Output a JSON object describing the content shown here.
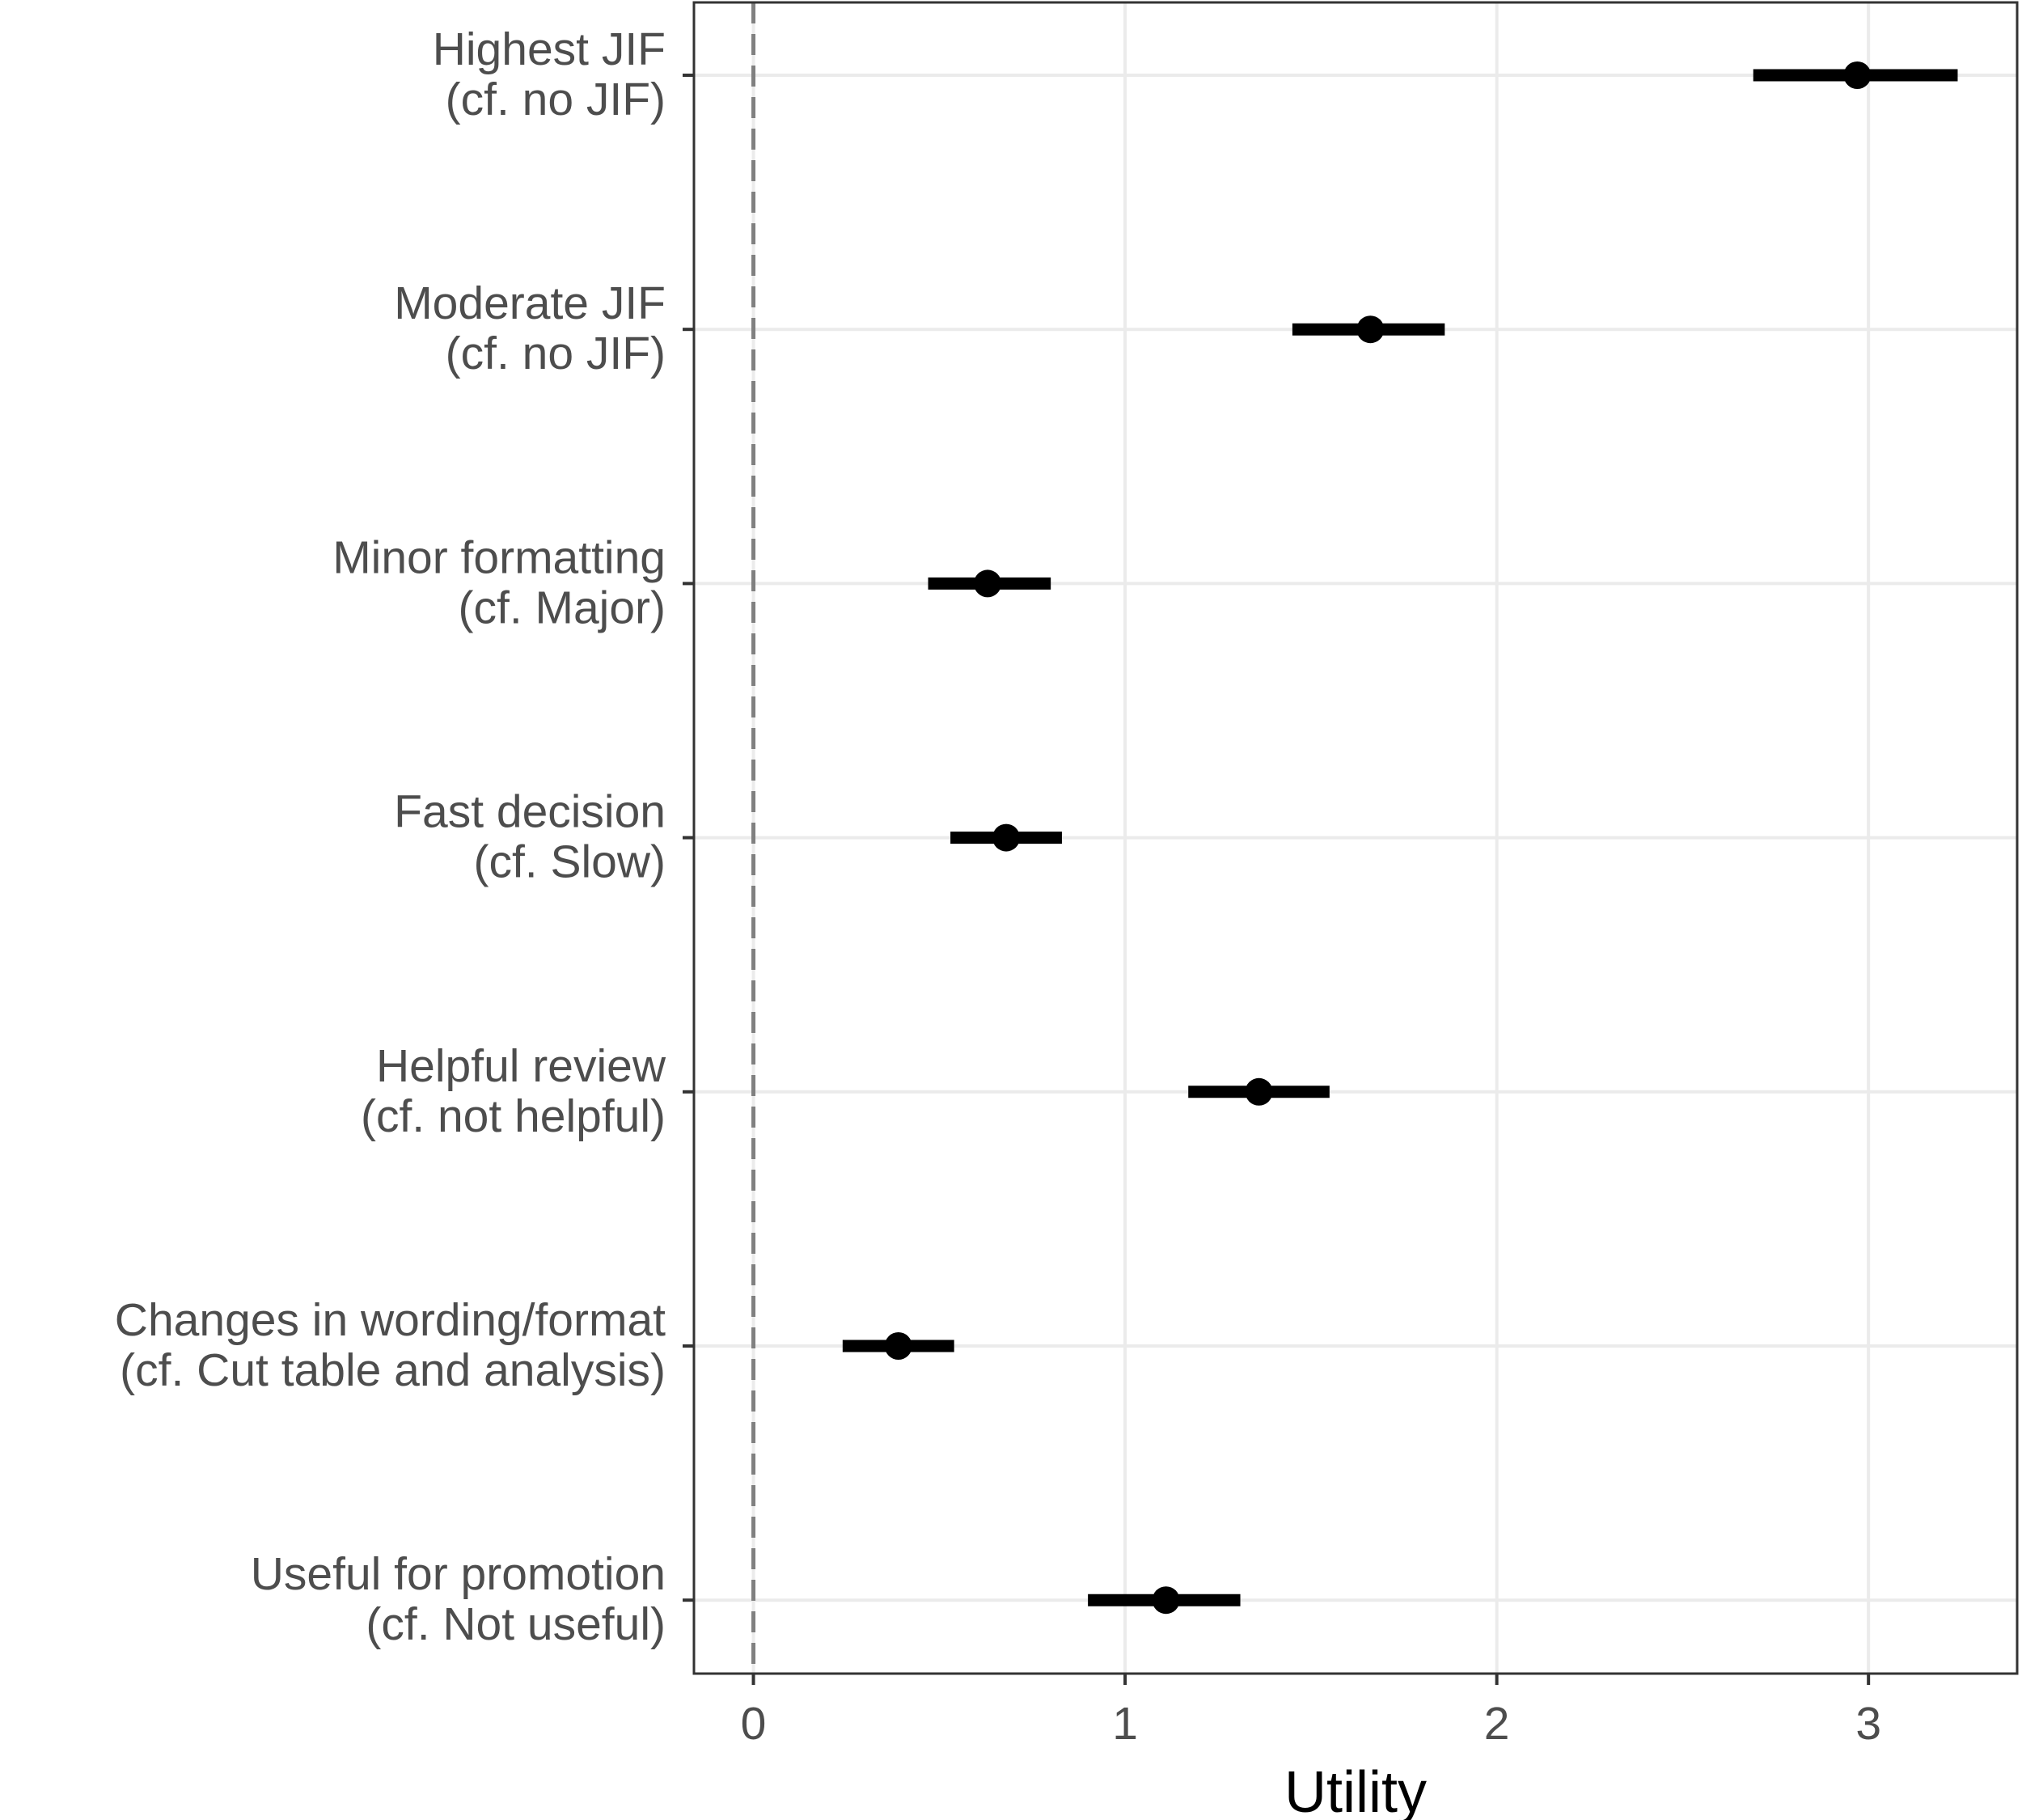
{
  "chart_data": {
    "type": "scatter",
    "subtype": "forest-plot",
    "title": "",
    "xlabel": "Utility",
    "ylabel": "",
    "xlim": [
      -0.16,
      3.4
    ],
    "x_ticks": [
      0,
      1,
      2,
      3
    ],
    "x_tick_labels": [
      "0",
      "1",
      "2",
      "3"
    ],
    "reference_line": {
      "x": 0,
      "style": "dashed",
      "color": "#808080"
    },
    "grid": true,
    "legend": "none",
    "point_color": "#000000",
    "categories": [
      {
        "line1": "Highest JIF",
        "line2": "(cf. no JIF)",
        "estimate": 2.97,
        "lower": 2.69,
        "upper": 3.24
      },
      {
        "line1": "Moderate JIF",
        "line2": "(cf. no JIF)",
        "estimate": 1.66,
        "lower": 1.45,
        "upper": 1.86
      },
      {
        "line1": "Minor formatting",
        "line2": "(cf. Major)",
        "estimate": 0.63,
        "lower": 0.47,
        "upper": 0.8
      },
      {
        "line1": "Fast decision",
        "line2": "(cf. Slow)",
        "estimate": 0.68,
        "lower": 0.53,
        "upper": 0.83
      },
      {
        "line1": "Helpful review",
        "line2": "(cf. not helpful)",
        "estimate": 1.36,
        "lower": 1.17,
        "upper": 1.55
      },
      {
        "line1": "Changes in wording/format",
        "line2": "(cf. Cut table and analysis)",
        "estimate": 0.39,
        "lower": 0.24,
        "upper": 0.54
      },
      {
        "line1": "Useful for promotion",
        "line2": "(cf. Not useful)",
        "estimate": 1.11,
        "lower": 0.9,
        "upper": 1.31
      }
    ]
  }
}
